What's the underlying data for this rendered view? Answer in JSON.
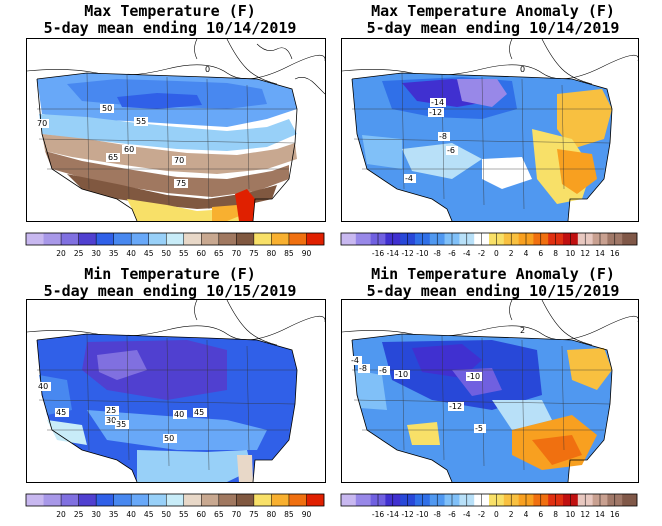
{
  "panels": [
    {
      "id": "max-temp",
      "title_line1": "Max Temperature (F)",
      "title_line2": "5-day mean ending 10/14/2019",
      "scale": "temp",
      "labels": [
        "50",
        "55",
        "60",
        "65",
        "70",
        "75",
        "70",
        "0"
      ]
    },
    {
      "id": "max-anom",
      "title_line1": "Max Temperature Anomaly (F)",
      "title_line2": "5-day mean ending 10/14/2019",
      "scale": "anom",
      "labels": [
        "-14",
        "-12",
        "-8",
        "-6",
        "-4",
        "0"
      ]
    },
    {
      "id": "min-temp",
      "title_line1": "Min Temperature (F)",
      "title_line2": "5-day mean ending 10/15/2019",
      "scale": "temp",
      "labels": [
        "40",
        "45",
        "25",
        "30",
        "35",
        "40",
        "45",
        "50"
      ]
    },
    {
      "id": "min-anom",
      "title_line1": "Min Temperature Anomaly (F)",
      "title_line2": "5-day mean ending 10/15/2019",
      "scale": "anom",
      "labels": [
        "-4",
        "-8",
        "-6",
        "-10",
        "-10",
        "-12",
        "-5",
        "2"
      ]
    }
  ],
  "scales": {
    "temp": {
      "ticks": [
        "20",
        "25",
        "30",
        "35",
        "40",
        "45",
        "50",
        "55",
        "60",
        "65",
        "70",
        "75",
        "80",
        "85",
        "90"
      ],
      "colors": [
        "#c8b8f0",
        "#a898e8",
        "#8070e0",
        "#5040d0",
        "#3060e8",
        "#4888f0",
        "#68a8f8",
        "#98d0f8",
        "#c8ecf8",
        "#e8d8c8",
        "#c8a890",
        "#a07860",
        "#805840",
        "#f8e068",
        "#f8b030",
        "#f07010",
        "#e02000"
      ]
    },
    "anom": {
      "ticks": [
        "-16",
        "-14",
        "-12",
        "-10",
        "-8",
        "-6",
        "-4",
        "-2",
        "0",
        "2",
        "4",
        "6",
        "8",
        "10",
        "12",
        "14",
        "16"
      ],
      "colors": [
        "#c8b8f0",
        "#9888e8",
        "#7060e0",
        "#4030d0",
        "#2848d8",
        "#3070e8",
        "#5098f0",
        "#80c0f8",
        "#b8e0f8",
        "#ffffff",
        "#f8e068",
        "#f8c040",
        "#f8a020",
        "#f07010",
        "#e03010",
        "#c01010",
        "#e8c8c0",
        "#c8a090",
        "#a07868",
        "#805848"
      ]
    }
  }
}
